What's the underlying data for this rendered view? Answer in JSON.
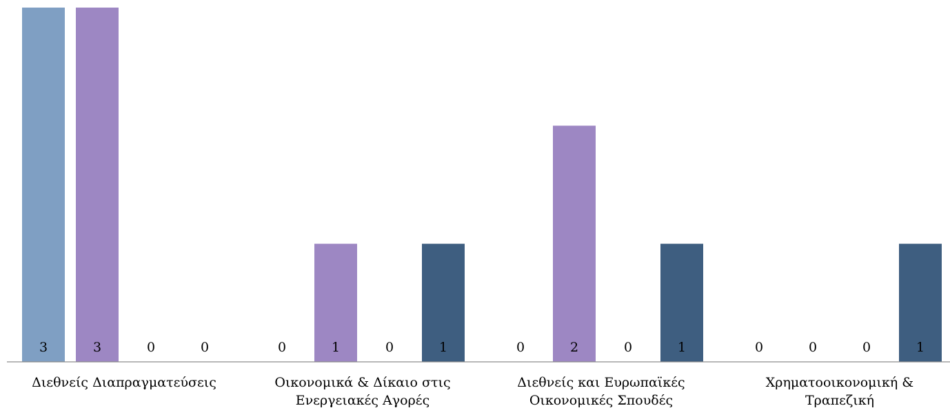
{
  "chart_data": {
    "type": "bar",
    "title": "",
    "xlabel": "",
    "ylabel": "",
    "ylim": [
      0,
      3
    ],
    "grid": false,
    "legend": "none",
    "categories": [
      "Διεθνείς Διαπραγματεύσεις",
      "Οικονομικά & Δίκαιο στις\nΕνεργειακές Αγορές",
      "Διεθνείς και Ευρωπαϊκές\nΟικονομικές Σπουδές",
      "Χρηματοοικονομική &\nΤραπεζική"
    ],
    "series": [
      {
        "values": [
          3,
          0,
          0,
          0
        ],
        "color": "#7f9fc3"
      },
      {
        "values": [
          3,
          1,
          2,
          0
        ],
        "color": "#9d87c3"
      },
      {
        "values": [
          0,
          0,
          0,
          0
        ],
        "color": "#5f7f9f"
      },
      {
        "values": [
          0,
          1,
          1,
          1
        ],
        "color": "#3e5e80"
      }
    ],
    "data_labels": true
  }
}
